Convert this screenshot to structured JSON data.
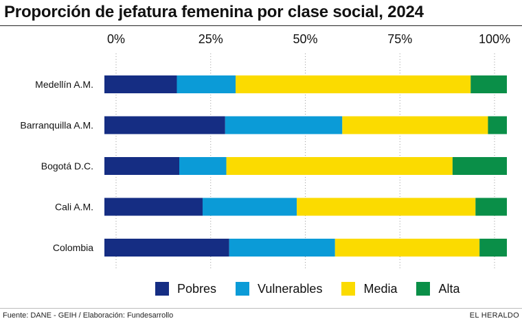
{
  "chart_data": {
    "type": "bar",
    "orientation": "horizontal",
    "stacked": true,
    "title": "Proporción de jefatura femenina por clase social, 2024",
    "categories": [
      "Medellín A.M.",
      "Barranquilla A.M.",
      "Bogotá D.C.",
      "Cali A.M.",
      "Colombia"
    ],
    "series": [
      {
        "name": "Pobres",
        "color": "#152d83",
        "values": [
          18.0,
          30.0,
          18.6,
          24.4,
          31.0
        ]
      },
      {
        "name": "Vulnerables",
        "color": "#0b9bd7",
        "values": [
          14.6,
          29.1,
          11.7,
          23.4,
          26.3
        ]
      },
      {
        "name": "Media",
        "color": "#fbdb00",
        "values": [
          58.4,
          36.2,
          56.2,
          44.4,
          35.9
        ]
      },
      {
        "name": "Alta",
        "color": "#0a8f48",
        "values": [
          9.0,
          4.7,
          13.5,
          7.8,
          6.8
        ]
      }
    ],
    "x_ticks": [
      "0%",
      "25%",
      "50%",
      "75%",
      "100%"
    ],
    "xlim": [
      0,
      100
    ],
    "grid": true,
    "legend_position": "bottom"
  },
  "footer": {
    "source": "Fuente: DANE - GEIH / Elaboración: Fundesarrollo",
    "brand": "EL HERALDO"
  }
}
